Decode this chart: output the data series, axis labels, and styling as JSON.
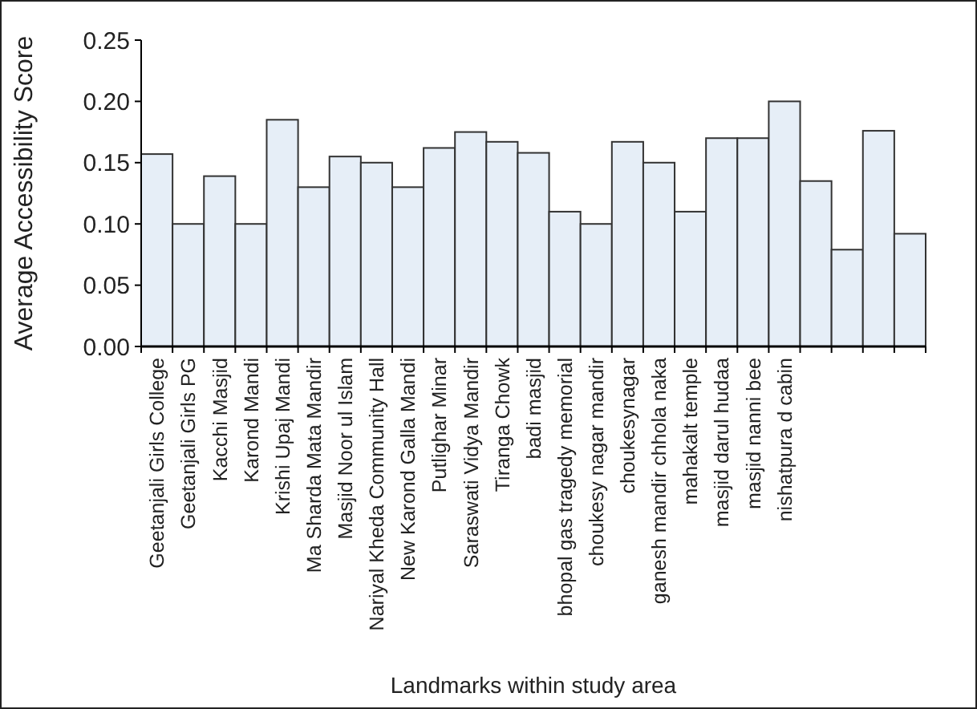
{
  "chart_data": {
    "type": "bar",
    "xlabel": "Landmarks within study area",
    "ylabel": "Average Accessibility Score",
    "categories": [
      "Geetanjali Girls College",
      "Geetanjali Girls PG",
      "Kacchi Masjid",
      "Karond Mandi",
      "Krishi Upaj Mandi",
      "Ma Sharda Mata Mandir",
      "Masjid Noor ul Islam",
      "Nariyal Kheda Community Hall",
      "New Karond Galla Mandi",
      "Putlighar Minar",
      "Saraswati Vidya Mandir",
      "Tiranga Chowk",
      "badi masjid",
      "bhopal gas tragedy memorial",
      "choukesy nagar mandir",
      "choukesynagar",
      "ganesh mandir chhola naka",
      "mahakalt temple",
      "masjid darul hudaa",
      "masjid nanni bee",
      "nishatpura d cabin",
      null,
      null,
      null,
      null
    ],
    "values": [
      0.157,
      0.1,
      0.139,
      0.1,
      0.185,
      0.13,
      0.155,
      0.15,
      0.13,
      0.162,
      0.175,
      0.167,
      0.158,
      0.11,
      0.1,
      0.167,
      0.15,
      0.11,
      0.17,
      0.17,
      0.2,
      0.135,
      0.079,
      0.176,
      0.092
    ],
    "color": "#e6eef7",
    "ylim": [
      0,
      0.25
    ],
    "yticks": [
      {
        "value": 0,
        "label": "0.00"
      },
      {
        "value": 0.05,
        "label": "0.05"
      },
      {
        "value": 0.1,
        "label": "0.10"
      },
      {
        "value": 0.15,
        "label": "0.15"
      },
      {
        "value": 0.2,
        "label": "0.20"
      },
      {
        "value": 0.25,
        "label": "0.25"
      }
    ],
    "grid": false
  }
}
